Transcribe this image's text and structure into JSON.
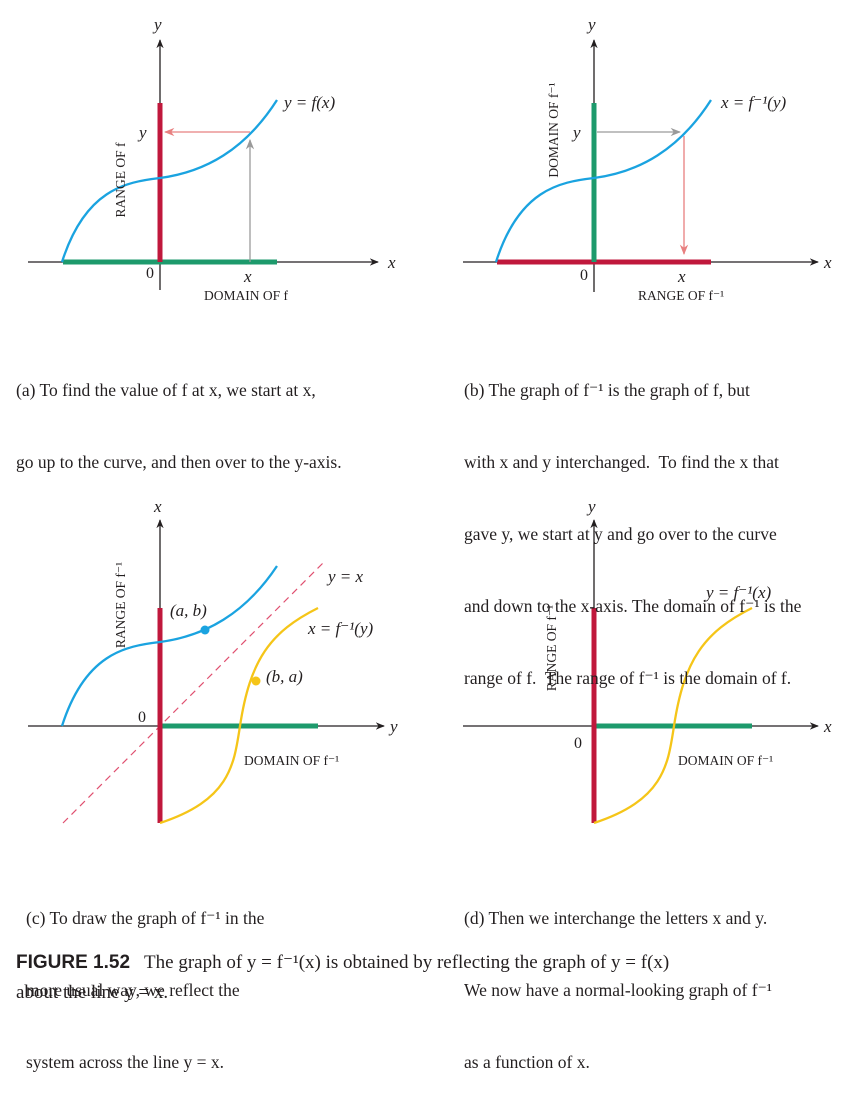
{
  "figure": {
    "label": "FIGURE 1.52",
    "caption_lines": [
      "The graph of y = f⁻¹(x) is obtained by reflecting the graph of y = f(x)",
      "about the line y = x."
    ]
  },
  "panels": {
    "a": {
      "axis_x": "x",
      "axis_y": "y",
      "origin": "0",
      "curve_label": "y = f(x)",
      "point_x": "x",
      "point_y": "y",
      "range_label": "RANGE OF f",
      "domain_label": "DOMAIN OF f",
      "caption_lines": [
        "(a) To find the value of f at x, we start at x,",
        "go up to the curve, and then over to the y-axis."
      ]
    },
    "b": {
      "axis_x": "x",
      "axis_y": "y",
      "origin": "0",
      "curve_label": "x = f⁻¹(y)",
      "point_x": "x",
      "point_y": "y",
      "domain_label": "DOMAIN OF f⁻¹",
      "range_label": "RANGE OF f⁻¹",
      "caption_lines": [
        "(b) The graph of f⁻¹ is the graph of f, but",
        "with x and y interchanged.  To find the x that",
        "gave y, we start at y and go over to the curve",
        "and down to the x-axis. The domain of f⁻¹ is the",
        "range of f.  The range of f⁻¹ is the domain of f."
      ]
    },
    "c": {
      "axis_x": "y",
      "axis_y": "x",
      "origin": "0",
      "line_label": "y = x",
      "curve_label": "x = f⁻¹(y)",
      "point_ab": "(a, b)",
      "point_ba": "(b, a)",
      "range_label": "RANGE OF f⁻¹",
      "domain_label": "DOMAIN OF f⁻¹",
      "caption_lines": [
        "(c) To draw the graph of f⁻¹ in the",
        "more usual way, we reflect the",
        "system across the line y = x."
      ]
    },
    "d": {
      "axis_x": "x",
      "axis_y": "y",
      "origin": "0",
      "curve_label": "y = f⁻¹(x)",
      "range_label": "RANGE OF f⁻¹",
      "domain_label": "DOMAIN OF f⁻¹",
      "caption_lines": [
        "(d) Then we interchange the letters x and y.",
        "We now have a normal-looking graph of f⁻¹",
        "as a function of x."
      ]
    }
  },
  "colors": {
    "curve_f": "#1aa3e0",
    "curve_inverse": "#f5c518",
    "range_bar": "#c0183c",
    "domain_bar": "#1d9a6c",
    "arrow_pink": "#e88080",
    "arrow_gray": "#9a9a9a",
    "axis": "#231f20"
  }
}
